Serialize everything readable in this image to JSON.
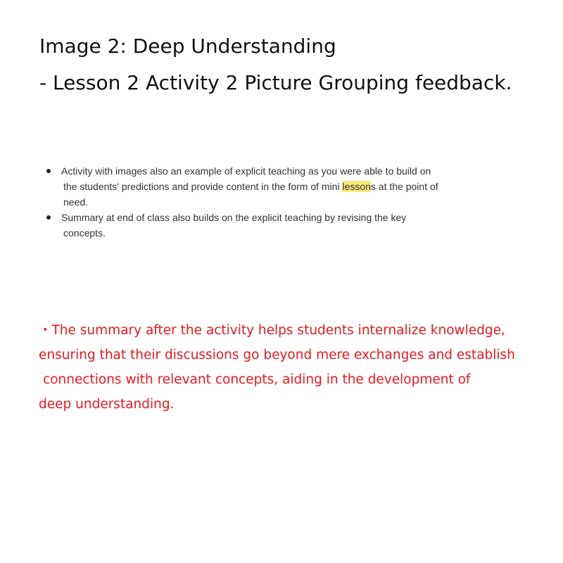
{
  "title": {
    "line1": "Image 2: Deep Understanding",
    "line2": "- Lesson 2 Activity 2 Picture Grouping feedback."
  },
  "bullets": [
    {
      "line1": "Activity with images also an example of explicit teaching as you were able to build on",
      "line2_pre": "the students' predictions and provide content in the form of mini ",
      "line2_highlight": "lesson",
      "line2_post": "s at the point of",
      "line3": "need."
    },
    {
      "line1": "Summary at end of class also builds on the explicit teaching by revising the key",
      "line2": "concepts."
    }
  ],
  "feedback": {
    "line1": "・The summary after the activity helps students internalize knowledge,",
    "line2": "ensuring that their discussions go beyond mere exchanges and establish",
    "line3": "connections with relevant concepts, aiding in the development of",
    "line4": "deep understanding."
  },
  "colors": {
    "feedback_text": "#e8191c",
    "highlight": "#fbe97a"
  }
}
